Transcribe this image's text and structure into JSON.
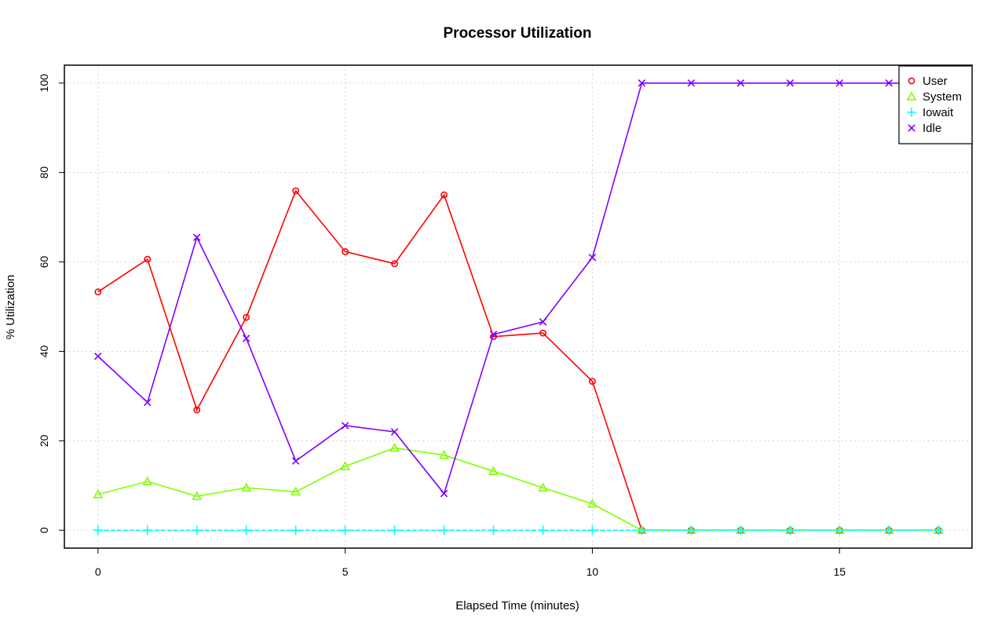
{
  "chart_data": {
    "type": "line",
    "title": "Processor Utilization",
    "xlabel": "Elapsed Time (minutes)",
    "ylabel": "% Utilization",
    "x": [
      0,
      1,
      2,
      3,
      4,
      5,
      6,
      7,
      8,
      9,
      10,
      11,
      12,
      13,
      14,
      15,
      16,
      17
    ],
    "xlim": [
      -0.68,
      17.68
    ],
    "ylim": [
      -4,
      104
    ],
    "xticks": [
      0,
      5,
      10,
      15
    ],
    "yticks": [
      0,
      20,
      40,
      60,
      80,
      100
    ],
    "grid": true,
    "legend_position": "top-right",
    "series": [
      {
        "name": "User",
        "color": "#ff0000",
        "marker": "circle",
        "values": [
          53.3,
          60.6,
          26.9,
          47.6,
          75.9,
          62.3,
          59.6,
          75.0,
          43.3,
          44.1,
          33.3,
          0,
          0,
          0,
          0,
          0,
          0,
          0
        ]
      },
      {
        "name": "System",
        "color": "#80ff00",
        "marker": "triangle",
        "values": [
          8.0,
          10.9,
          7.6,
          9.5,
          8.6,
          14.3,
          18.4,
          16.8,
          13.2,
          9.5,
          5.9,
          0,
          0,
          0,
          0,
          0,
          0,
          0
        ]
      },
      {
        "name": "Iowait",
        "color": "#00ffff",
        "marker": "plus",
        "values": [
          0,
          0,
          0,
          0,
          0,
          0,
          0,
          0,
          0,
          0,
          0,
          0,
          0,
          0,
          0,
          0,
          0,
          0
        ]
      },
      {
        "name": "Idle",
        "color": "#8000ff",
        "marker": "cross",
        "values": [
          38.9,
          28.6,
          65.5,
          42.9,
          15.5,
          23.4,
          22.0,
          8.2,
          43.8,
          46.6,
          61.0,
          100,
          100,
          100,
          100,
          100,
          100,
          100
        ]
      }
    ]
  }
}
